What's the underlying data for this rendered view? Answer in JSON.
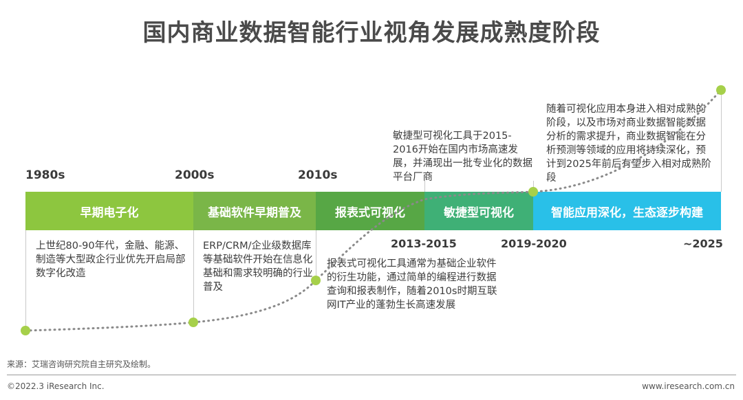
{
  "title": "国内商业数据智能行业视角发展成熟度阶段",
  "years": [
    "1980s",
    "2000s",
    "2010s"
  ],
  "stages": [
    {
      "label": "早期电子化",
      "color": "#8dc63f"
    },
    {
      "label": "基础软件早期普及",
      "color": "#7ab648"
    },
    {
      "label": "报表式可视化",
      "color": "#57a745"
    },
    {
      "label": "敏捷型可视化",
      "color": "#3fb076"
    },
    {
      "label": "智能应用深化，生态逐步构建",
      "color": "#29c0e8"
    }
  ],
  "ranges": [
    "2013-2015",
    "2019-2020",
    "~2025"
  ],
  "descriptions": [
    "上世纪80-90年代，金融、能源、制造等大型政企行业优先开启局部数字化改造",
    "ERP/CRM/企业级数据库等基础软件开始在信息化基础和需求较明确的行业普及",
    "报表式可视化工具通常为基础企业软件的衍生功能，通过简单的编程进行数据查询和报表制作，随着2010s时期互联网IT产业的蓬勃生长高速发展",
    "敏捷型可视化工具于2015-2016开始在国内市场高速发展，并涌现出一批专业化的数据平台厂商",
    "随着可视化应用本身进入相对成熟的阶段，以及市场对商业数据智能数据分析的需求提升，商业数据智能在分析预测等领域的应用将持续深化，预计到2025年前后有望步入相对成熟阶段"
  ],
  "source": "来源：艾瑞咨询研究院自主研究及绘制。",
  "footer": {
    "left": "©2022.3 iResearch Inc.",
    "right": "www.iresearch.com.cn"
  },
  "colors": {
    "dot": "#a6d04a",
    "curve": "#8a8a8a"
  }
}
